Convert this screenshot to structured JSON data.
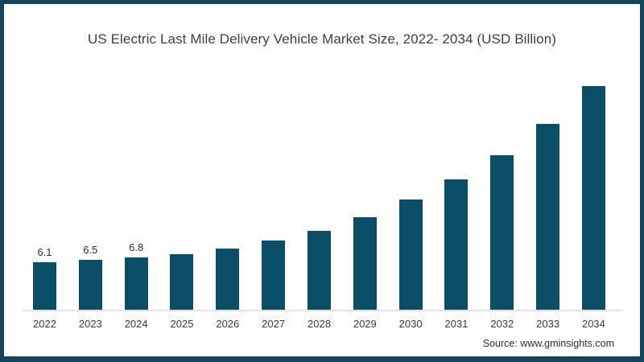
{
  "page": {
    "background_color": "#ffffff",
    "frame_border_color": "#14455a"
  },
  "chart": {
    "title": "US Electric Last Mile Delivery Vehicle Market Size, 2022- 2034 (USD Billion)",
    "source": "Source: www.gminsights.com",
    "bar_color": "#0b4e68",
    "baseline_color": "#e3e3e3"
  },
  "chart_data": {
    "type": "bar",
    "title": "US Electric Last Mile Delivery Vehicle Market Size, 2022- 2034 (USD Billion)",
    "xlabel": "",
    "ylabel": "",
    "categories": [
      "2022",
      "2023",
      "2024",
      "2025",
      "2026",
      "2027",
      "2028",
      "2029",
      "2030",
      "2031",
      "2032",
      "2033",
      "2034"
    ],
    "values": [
      6.1,
      6.5,
      6.8,
      7.2,
      7.9,
      9.0,
      10.2,
      12.0,
      14.3,
      16.9,
      20.0,
      24.1,
      29.0
    ],
    "data_labels": [
      "6.1",
      "6.5",
      "6.8",
      "",
      "",
      "",
      "",
      "",
      "",
      "",
      "",
      "",
      ""
    ],
    "ylim": [
      0,
      30
    ],
    "grid": false,
    "legend": false,
    "y_axis_visible": false,
    "bar_color": "#0b4e68",
    "source_note": "Source: www.gminsights.com"
  }
}
